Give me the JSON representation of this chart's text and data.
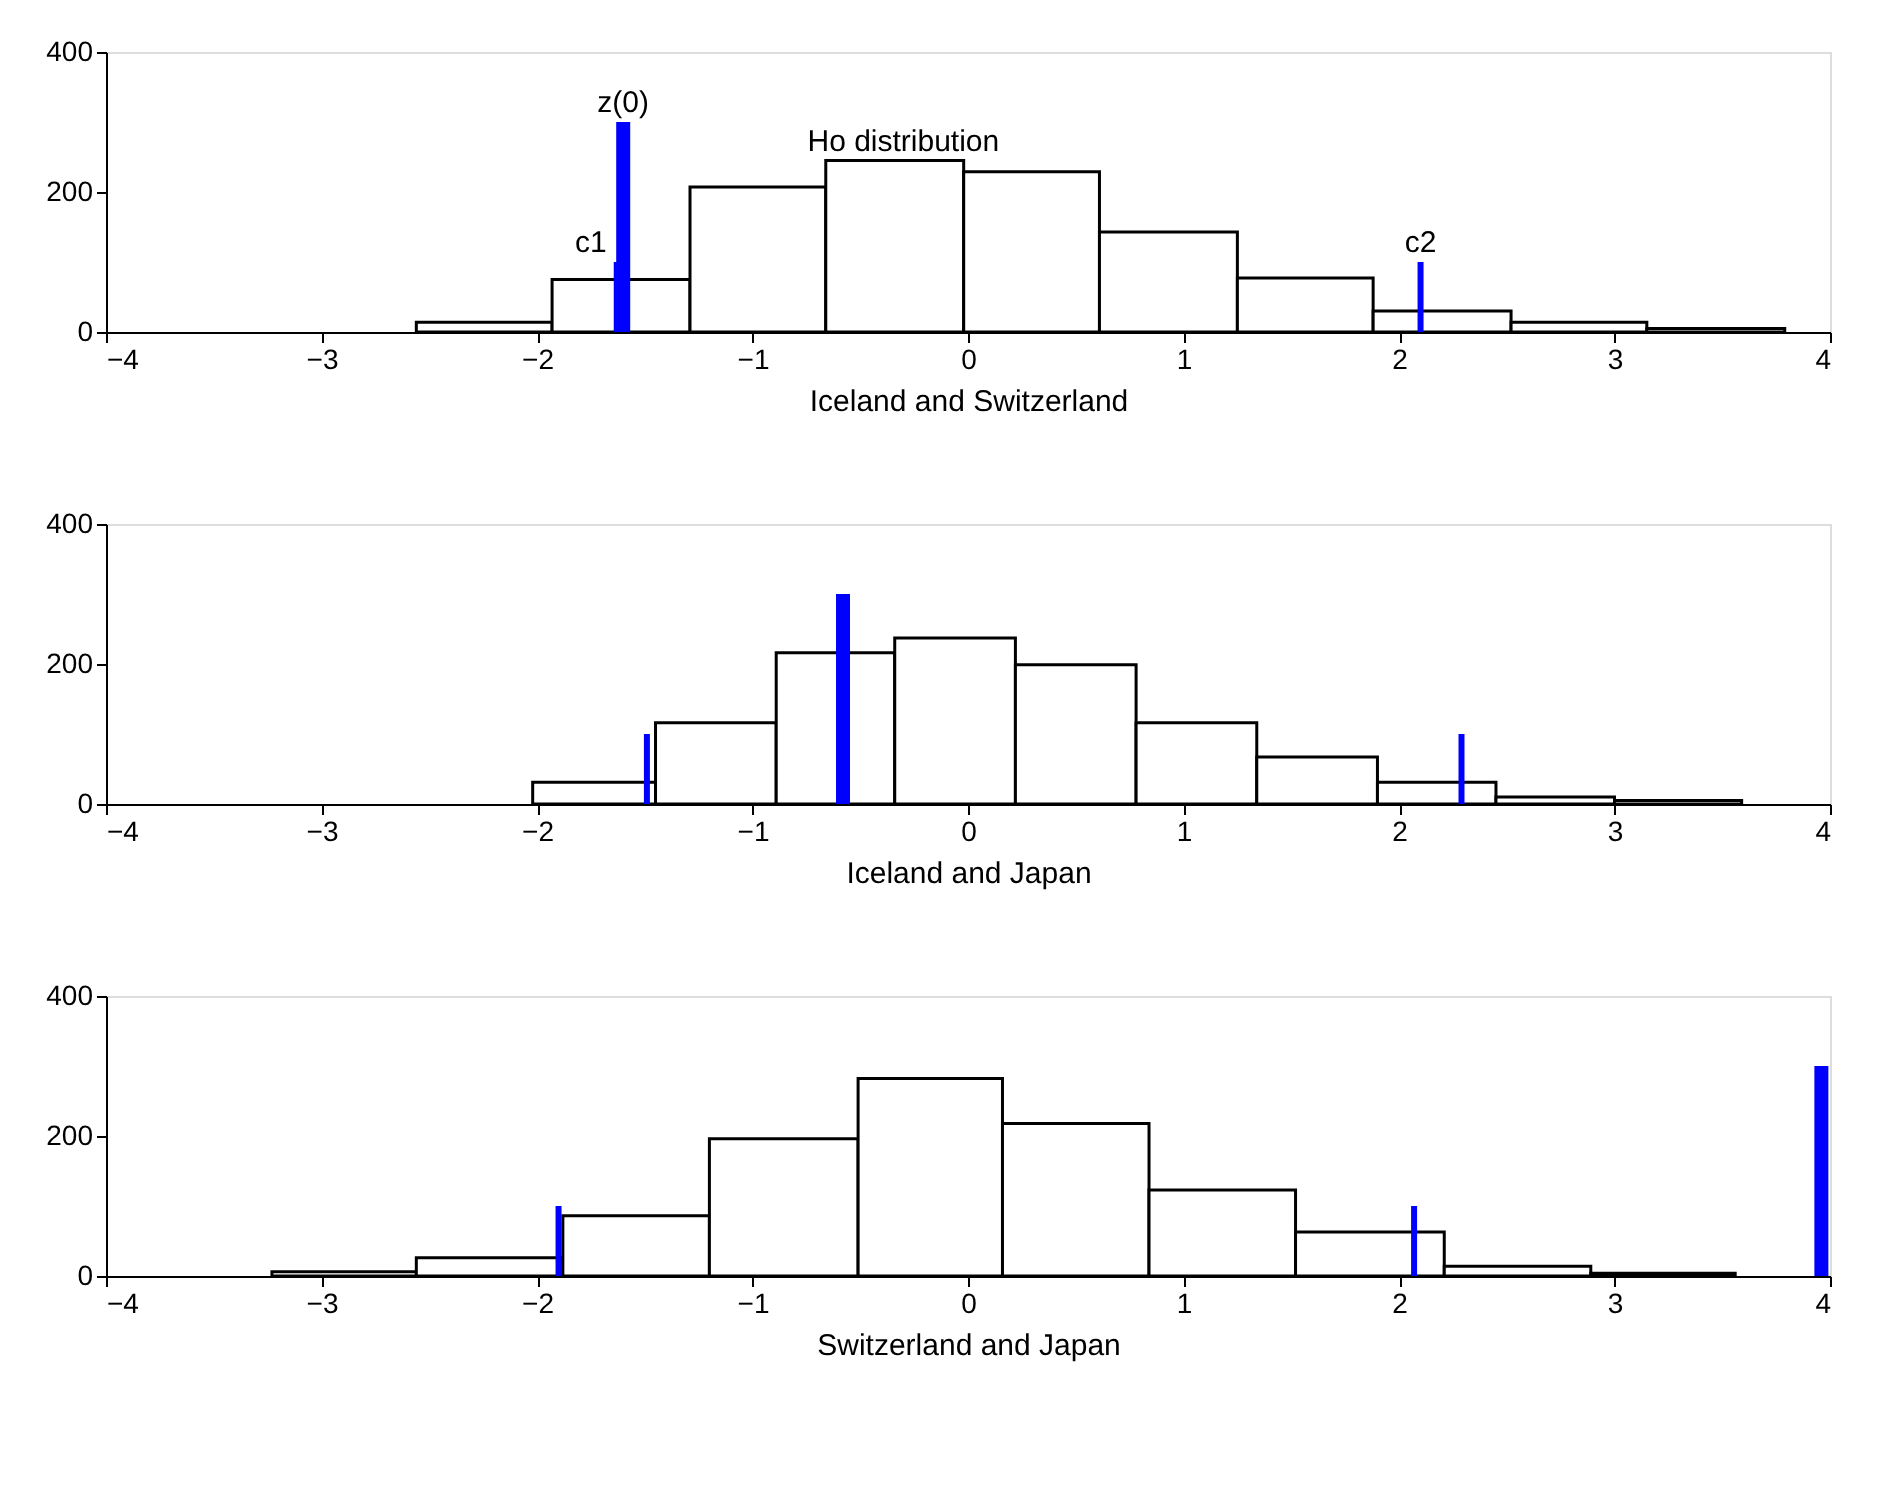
{
  "chart_data": [
    {
      "type": "histogram",
      "xlabel": "Iceland and Switzerland",
      "bins": [
        -2.56,
        -1.93,
        -1.29,
        -0.66,
        -0.02,
        0.61,
        1.25,
        1.88,
        2.52,
        3.15,
        3.79
      ],
      "values": [
        14,
        75,
        207,
        245,
        229,
        143,
        77,
        30,
        14,
        5
      ],
      "color": "#ffffff",
      "series": [
        {
          "type": "bar",
          "x": [
            -1.63,
            2.1
          ],
          "values": [
            100,
            100
          ],
          "color": "#0000ff"
        },
        {
          "type": "bar",
          "x": [
            -1.6
          ],
          "values": [
            300
          ],
          "color": "#0000ff"
        }
      ],
      "annotations": [
        {
          "text": "z(0)",
          "x": -1.6,
          "y": 300
        },
        {
          "text": "c1",
          "x": -1.63,
          "y": 100
        },
        {
          "text": "c2",
          "x": 2.1,
          "y": 100
        },
        {
          "text": "Ho distribution",
          "x": -0.3,
          "y": 245
        }
      ],
      "xlim": [
        -4,
        4
      ],
      "xticks": [
        -4,
        -3,
        -2,
        -1,
        0,
        1,
        2,
        3,
        4
      ],
      "ylim": [
        0,
        400
      ],
      "yticks": [
        0,
        200,
        400
      ],
      "grid": false
    },
    {
      "type": "histogram",
      "xlabel": "Iceland and Japan",
      "bins": [
        -2.02,
        -1.45,
        -0.89,
        -0.34,
        0.22,
        0.78,
        1.34,
        1.9,
        2.45,
        3.0,
        3.59
      ],
      "values": [
        31,
        116,
        216,
        237,
        199,
        116,
        67,
        31,
        10,
        5
      ],
      "color": "#ffffff",
      "series": [
        {
          "type": "bar",
          "x": [
            -1.49,
            2.29
          ],
          "values": [
            100,
            100
          ],
          "color": "#0000ff"
        },
        {
          "type": "bar",
          "x": [
            -0.58
          ],
          "values": [
            300
          ],
          "color": "#0000ff"
        }
      ],
      "xlim": [
        -4,
        4
      ],
      "xticks": [
        -4,
        -3,
        -2,
        -1,
        0,
        1,
        2,
        3,
        4
      ],
      "ylim": [
        0,
        400
      ],
      "yticks": [
        0,
        200,
        400
      ],
      "grid": false
    },
    {
      "type": "histogram",
      "xlabel": "Switzerland and Japan",
      "bins": [
        -3.23,
        -2.56,
        -1.88,
        -1.2,
        -0.51,
        0.16,
        0.84,
        1.52,
        2.21,
        2.89,
        3.56
      ],
      "values": [
        6,
        26,
        86,
        196,
        282,
        218,
        123,
        63,
        14,
        4
      ],
      "color": "#ffffff",
      "series": [
        {
          "type": "bar",
          "x": [
            -1.9,
            2.07
          ],
          "values": [
            100,
            100
          ],
          "color": "#0000ff"
        },
        {
          "type": "bar",
          "x": [
            3.96
          ],
          "values": [
            300
          ],
          "color": "#0000ff"
        }
      ],
      "xlim": [
        -4,
        4
      ],
      "xticks": [
        -4,
        -3,
        -2,
        -1,
        0,
        1,
        2,
        3,
        4
      ],
      "ylim": [
        0,
        400
      ],
      "yticks": [
        0,
        200,
        400
      ],
      "grid": false
    }
  ]
}
